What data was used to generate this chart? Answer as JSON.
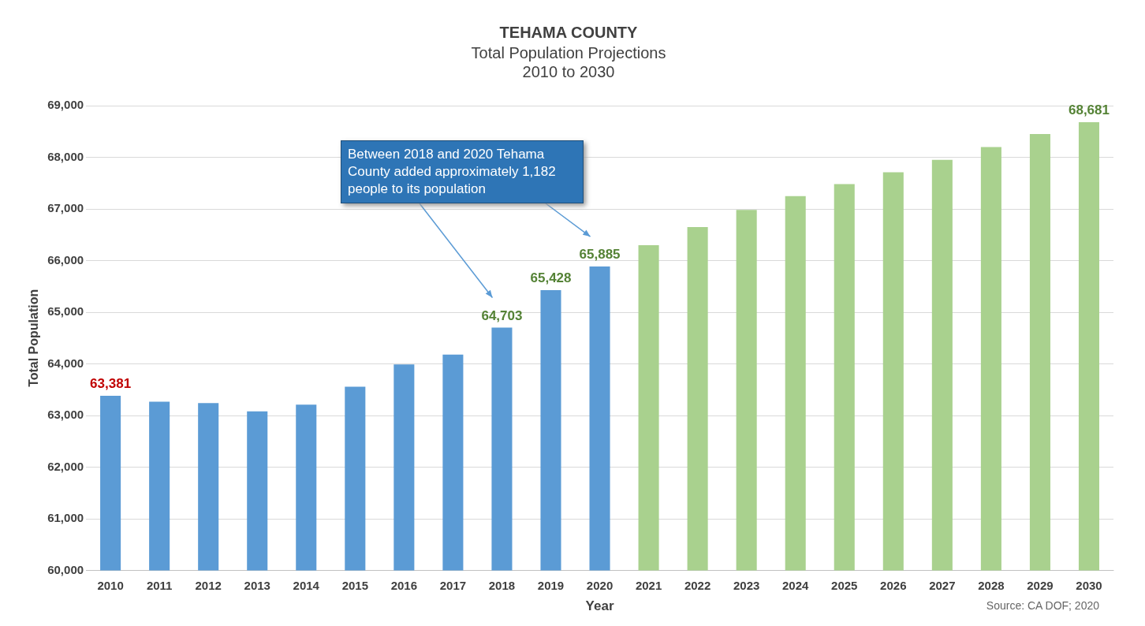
{
  "chart_data": {
    "type": "bar",
    "title": "TEHAMA COUNTY",
    "subtitle": "Total Population Projections\n2010 to 2030",
    "xlabel": "Year",
    "ylabel": "Total Population",
    "categories": [
      "2010",
      "2011",
      "2012",
      "2013",
      "2014",
      "2015",
      "2016",
      "2017",
      "2018",
      "2019",
      "2020",
      "2021",
      "2022",
      "2023",
      "2024",
      "2025",
      "2026",
      "2027",
      "2028",
      "2029",
      "2030"
    ],
    "values": [
      63381,
      63270,
      63240,
      63080,
      63210,
      63560,
      63990,
      64180,
      64703,
      65428,
      65885,
      66300,
      66650,
      66980,
      67250,
      67480,
      67710,
      67950,
      68200,
      68450,
      68681
    ],
    "colors": [
      "#5b9bd5",
      "#5b9bd5",
      "#5b9bd5",
      "#5b9bd5",
      "#5b9bd5",
      "#5b9bd5",
      "#5b9bd5",
      "#5b9bd5",
      "#5b9bd5",
      "#5b9bd5",
      "#5b9bd5",
      "#a9d18e",
      "#a9d18e",
      "#a9d18e",
      "#a9d18e",
      "#a9d18e",
      "#a9d18e",
      "#a9d18e",
      "#a9d18e",
      "#a9d18e",
      "#a9d18e"
    ],
    "value_labels": [
      "63,381",
      null,
      null,
      null,
      null,
      null,
      null,
      null,
      "64,703",
      "65,428",
      "65,885",
      null,
      null,
      null,
      null,
      null,
      null,
      null,
      null,
      null,
      "68,681"
    ],
    "ylim": [
      60000,
      69000
    ],
    "yticks": [
      {
        "value": 60000,
        "label": "60,000"
      },
      {
        "value": 61000,
        "label": "61,000"
      },
      {
        "value": 62000,
        "label": "62,000"
      },
      {
        "value": 63000,
        "label": "63,000"
      },
      {
        "value": 64000,
        "label": "64,000"
      },
      {
        "value": 65000,
        "label": "65,000"
      },
      {
        "value": 66000,
        "label": "66,000"
      },
      {
        "value": 67000,
        "label": "67,000"
      },
      {
        "value": 68000,
        "label": "68,000"
      },
      {
        "value": 69000,
        "label": "69,000"
      }
    ],
    "grid": "y",
    "legend": false,
    "annotations": [
      "Between 2018 and 2020 Tehama County added approximately 1,182 people to its population",
      "Source: CA DOF; 2020"
    ]
  }
}
